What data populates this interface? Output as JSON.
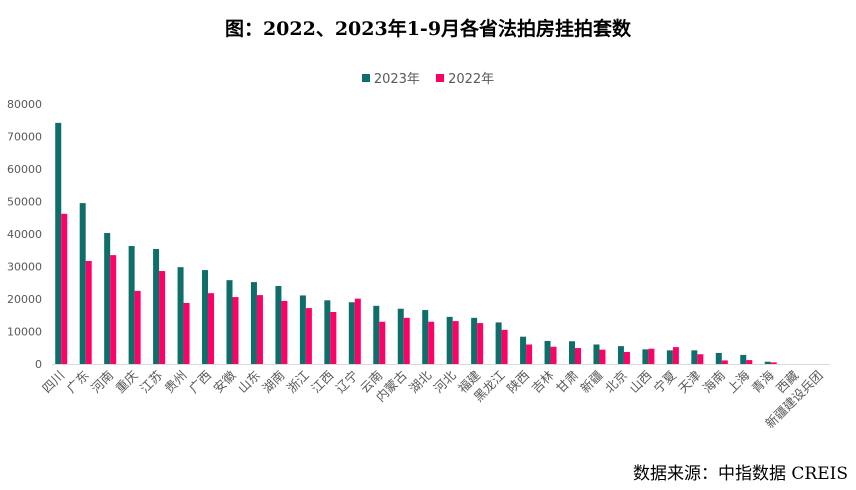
{
  "chart_data": {
    "type": "bar",
    "title": "图：2022、2023年1-9月各省法拍房挂拍套数",
    "xlabel": "",
    "ylabel": "",
    "ylim": [
      0,
      80000
    ],
    "yticks": [
      0,
      10000,
      20000,
      30000,
      40000,
      50000,
      60000,
      70000,
      80000
    ],
    "legend_position": "top",
    "grid": false,
    "categories": [
      "四川",
      "广东",
      "河南",
      "重庆",
      "江苏",
      "贵州",
      "广西",
      "安徽",
      "山东",
      "湖南",
      "浙江",
      "江西",
      "辽宁",
      "云南",
      "内蒙古",
      "湖北",
      "河北",
      "福建",
      "黑龙江",
      "陕西",
      "吉林",
      "甘肃",
      "新疆",
      "北京",
      "山西",
      "宁夏",
      "天津",
      "海南",
      "上海",
      "青海",
      "西藏",
      "新疆建设兵团"
    ],
    "series": [
      {
        "name": "2023年",
        "color": "#0f6e6a",
        "values": [
          74200,
          49500,
          40300,
          36300,
          35400,
          29800,
          28900,
          25800,
          25200,
          24000,
          21100,
          19600,
          19000,
          17900,
          17000,
          16600,
          14500,
          14200,
          12800,
          8400,
          7100,
          7000,
          6000,
          5500,
          4500,
          4200,
          4200,
          3400,
          2800,
          700,
          0,
          0
        ]
      },
      {
        "name": "2022年",
        "color": "#ff0066",
        "values": [
          46200,
          31700,
          33500,
          22500,
          28600,
          18800,
          21800,
          20600,
          21200,
          19400,
          17200,
          16000,
          20100,
          13000,
          14200,
          13000,
          13200,
          12600,
          10500,
          6000,
          5300,
          4900,
          4400,
          3700,
          4700,
          5200,
          3000,
          1100,
          1200,
          500,
          0,
          0
        ]
      }
    ]
  },
  "source": "数据来源：中指数据 CREIS"
}
